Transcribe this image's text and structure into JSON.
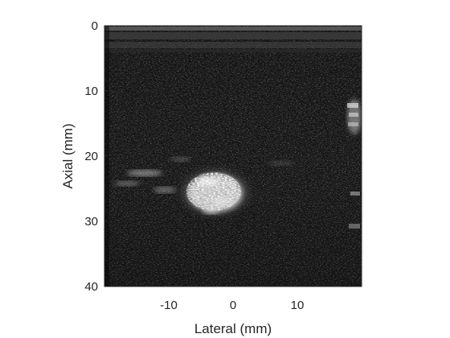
{
  "image": {
    "kind": "ultrasound-b-mode",
    "colormap": "grayscale",
    "background_color": "#ffffff",
    "frame_color": "#262626"
  },
  "axes": {
    "xlabel": "Lateral (mm)",
    "ylabel": "Axial (mm)",
    "xlim": [
      -20,
      20
    ],
    "ylim": [
      0,
      40
    ],
    "y_direction": "down",
    "xticks": [
      {
        "value": -10,
        "label": "-10"
      },
      {
        "value": 0,
        "label": "0"
      },
      {
        "value": 10,
        "label": "10"
      }
    ],
    "yticks": [
      {
        "value": 0,
        "label": "0"
      },
      {
        "value": 10,
        "label": "10"
      },
      {
        "value": 20,
        "label": "20"
      },
      {
        "value": 30,
        "label": "30"
      },
      {
        "value": 40,
        "label": "40"
      }
    ]
  }
}
